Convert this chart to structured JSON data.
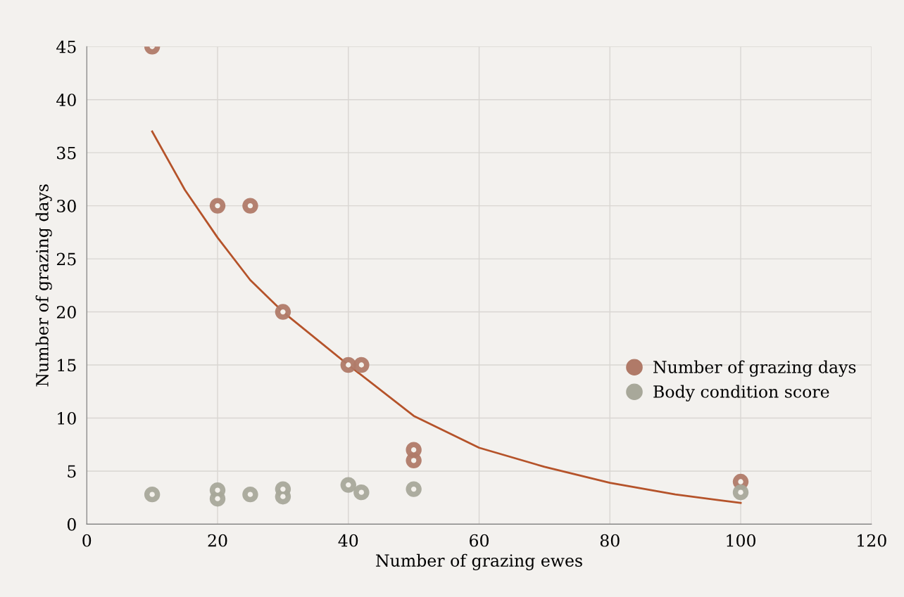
{
  "chart_data": {
    "type": "scatter",
    "xlabel": "Number of grazing ewes",
    "ylabel": "Number of grazing days",
    "xlim": [
      0,
      120
    ],
    "xticks": [
      0,
      20,
      40,
      60,
      80,
      100,
      120
    ],
    "ylim": [
      0,
      45
    ],
    "yticks": [
      0,
      5,
      10,
      15,
      20,
      25,
      30,
      35,
      40,
      45
    ],
    "grid": true,
    "legend": "right",
    "marker": "circle",
    "series": [
      {
        "name": "Number of grazing days",
        "color": "#b07a68",
        "x": [
          10,
          20,
          25,
          30,
          40,
          42,
          50,
          50,
          100
        ],
        "values": [
          45,
          30,
          30,
          20,
          15,
          15,
          7,
          6,
          4
        ]
      },
      {
        "name": "Body condition score",
        "color": "#a8a89a",
        "x": [
          10,
          20,
          20,
          25,
          30,
          30,
          40,
          42,
          50,
          100
        ],
        "values": [
          2.8,
          3.2,
          2.4,
          2.8,
          3.3,
          2.6,
          3.7,
          3.0,
          3.3,
          3.0
        ]
      },
      {
        "type": "line",
        "color": "#b5532a",
        "line_style": "solid",
        "marker": "none",
        "x": [
          10,
          15,
          20,
          25,
          30,
          40,
          50,
          60,
          70,
          80,
          90,
          100
        ],
        "values": [
          37,
          31.5,
          27,
          23,
          20,
          15,
          10.2,
          7.2,
          5.4,
          3.9,
          2.8,
          2.0
        ]
      }
    ]
  }
}
